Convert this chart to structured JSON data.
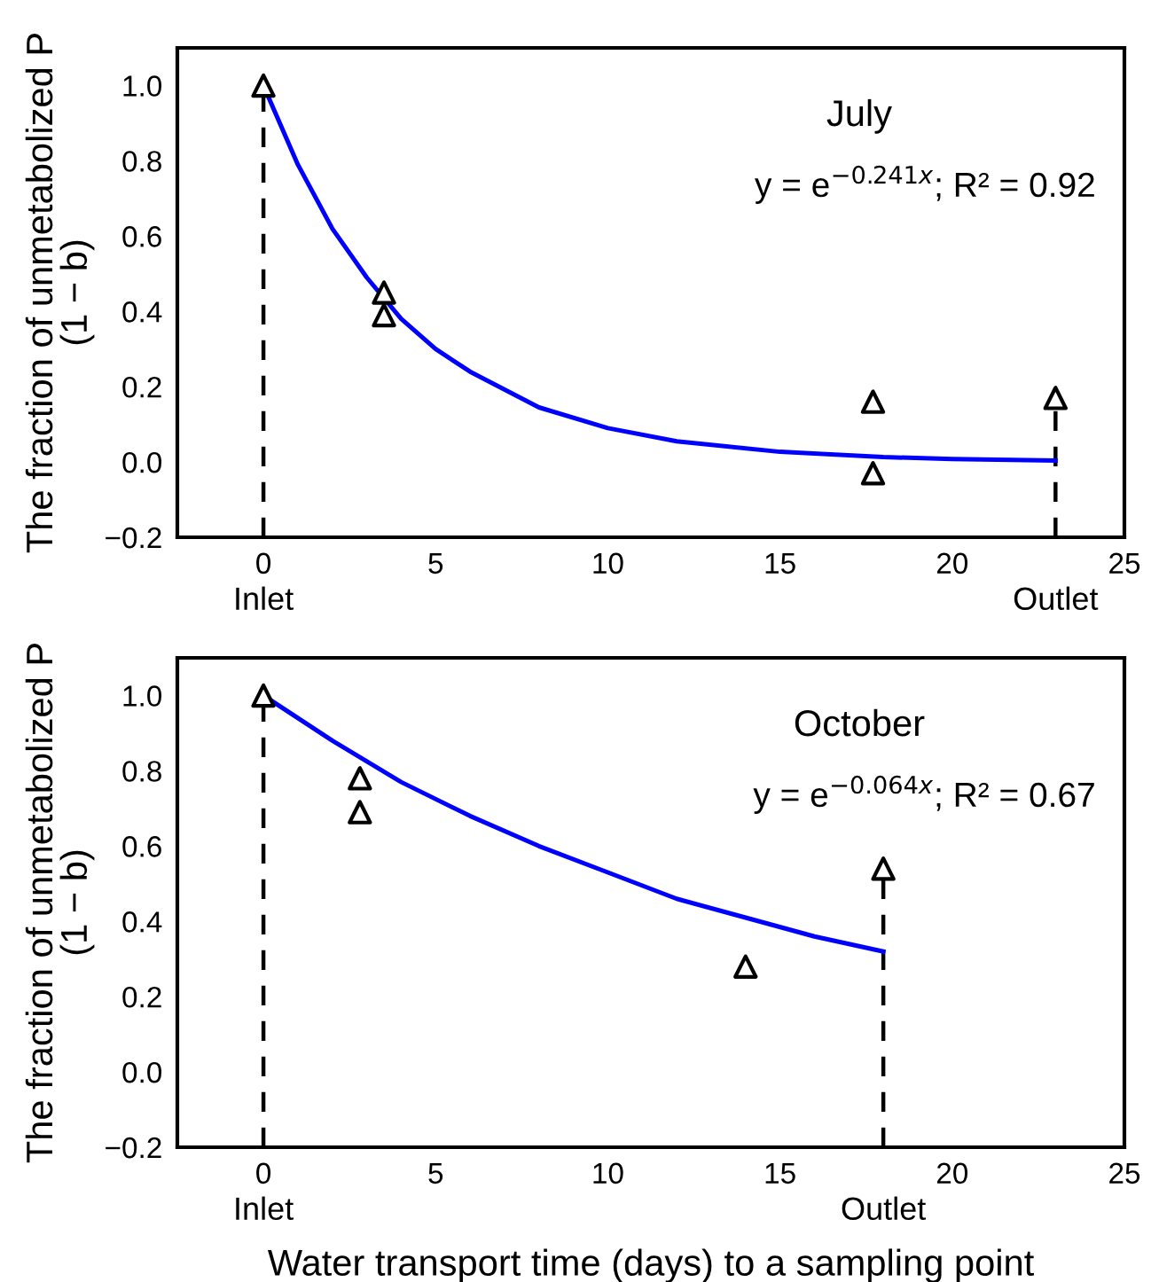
{
  "chart_data": [
    {
      "type": "scatter",
      "ylabel": "The fraction of unmetabolized P\n(1 − b)",
      "xlim": [
        -2.5,
        25
      ],
      "ylim": [
        -0.2,
        1.1
      ],
      "xticks": [
        0,
        5,
        10,
        15,
        20,
        25
      ],
      "yticks": [
        {
          "value": -0.2,
          "label": "−0.2"
        },
        {
          "value": 0.0,
          "label": "0.0"
        },
        {
          "value": 0.2,
          "label": "0.2"
        },
        {
          "value": 0.4,
          "label": "0.4"
        },
        {
          "value": 0.6,
          "label": "0.6"
        },
        {
          "value": 0.8,
          "label": "0.8"
        },
        {
          "value": 1.0,
          "label": "1.0"
        }
      ],
      "annotations": [
        "July",
        "y = e$^{−0.241x}$; R² = 0.92"
      ],
      "ref_lines": [
        {
          "axis": "x",
          "value": 0,
          "label": "Inlet",
          "color": "#000000",
          "line_style": "dashed"
        },
        {
          "axis": "x",
          "value": 23,
          "label": "Outlet",
          "color": "#000000",
          "line_style": "dashed"
        }
      ],
      "series": [
        {
          "type": "line",
          "color": "#0000ff",
          "line_style": "solid",
          "marker": "none",
          "x": [
            0,
            1,
            2,
            3,
            4,
            5,
            6,
            8,
            10,
            12,
            15,
            18,
            20,
            23
          ],
          "values": [
            1.0,
            0.79,
            0.62,
            0.49,
            0.38,
            0.3,
            0.24,
            0.145,
            0.09,
            0.055,
            0.027,
            0.013,
            0.008,
            0.004
          ]
        },
        {
          "color": "#000000",
          "marker": "triangle",
          "x": [
            0,
            3.5,
            3.5,
            17.7,
            17.7,
            23
          ],
          "values": [
            1.0,
            0.45,
            0.39,
            0.16,
            -0.03,
            0.17
          ]
        }
      ]
    },
    {
      "type": "scatter",
      "ylabel": "The fraction of unmetabolized P\n(1 − b)",
      "xlabel": "Water transport time (days) to a sampling point",
      "xlim": [
        -2.5,
        25
      ],
      "ylim": [
        -0.2,
        1.1
      ],
      "xticks": [
        0,
        5,
        10,
        15,
        20,
        25
      ],
      "yticks": [
        {
          "value": -0.2,
          "label": "−0.2"
        },
        {
          "value": 0.0,
          "label": "0.0"
        },
        {
          "value": 0.2,
          "label": "0.2"
        },
        {
          "value": 0.4,
          "label": "0.4"
        },
        {
          "value": 0.6,
          "label": "0.6"
        },
        {
          "value": 0.8,
          "label": "0.8"
        },
        {
          "value": 1.0,
          "label": "1.0"
        }
      ],
      "annotations": [
        "October",
        "y = e$^{−0.064x}$; R² = 0.67"
      ],
      "ref_lines": [
        {
          "axis": "x",
          "value": 0,
          "label": "Inlet",
          "color": "#000000",
          "line_style": "dashed"
        },
        {
          "axis": "x",
          "value": 18,
          "label": "Outlet",
          "color": "#000000",
          "line_style": "dashed"
        }
      ],
      "series": [
        {
          "type": "line",
          "color": "#0000ff",
          "line_style": "solid",
          "marker": "none",
          "x": [
            0,
            2,
            4,
            6,
            8,
            10,
            12,
            14,
            16,
            18
          ],
          "values": [
            1.0,
            0.88,
            0.77,
            0.68,
            0.6,
            0.53,
            0.46,
            0.41,
            0.36,
            0.32
          ]
        },
        {
          "color": "#000000",
          "marker": "triangle",
          "x": [
            0,
            2.8,
            2.8,
            14.0,
            18
          ],
          "values": [
            1.0,
            0.78,
            0.69,
            0.28,
            0.54
          ]
        }
      ]
    }
  ]
}
